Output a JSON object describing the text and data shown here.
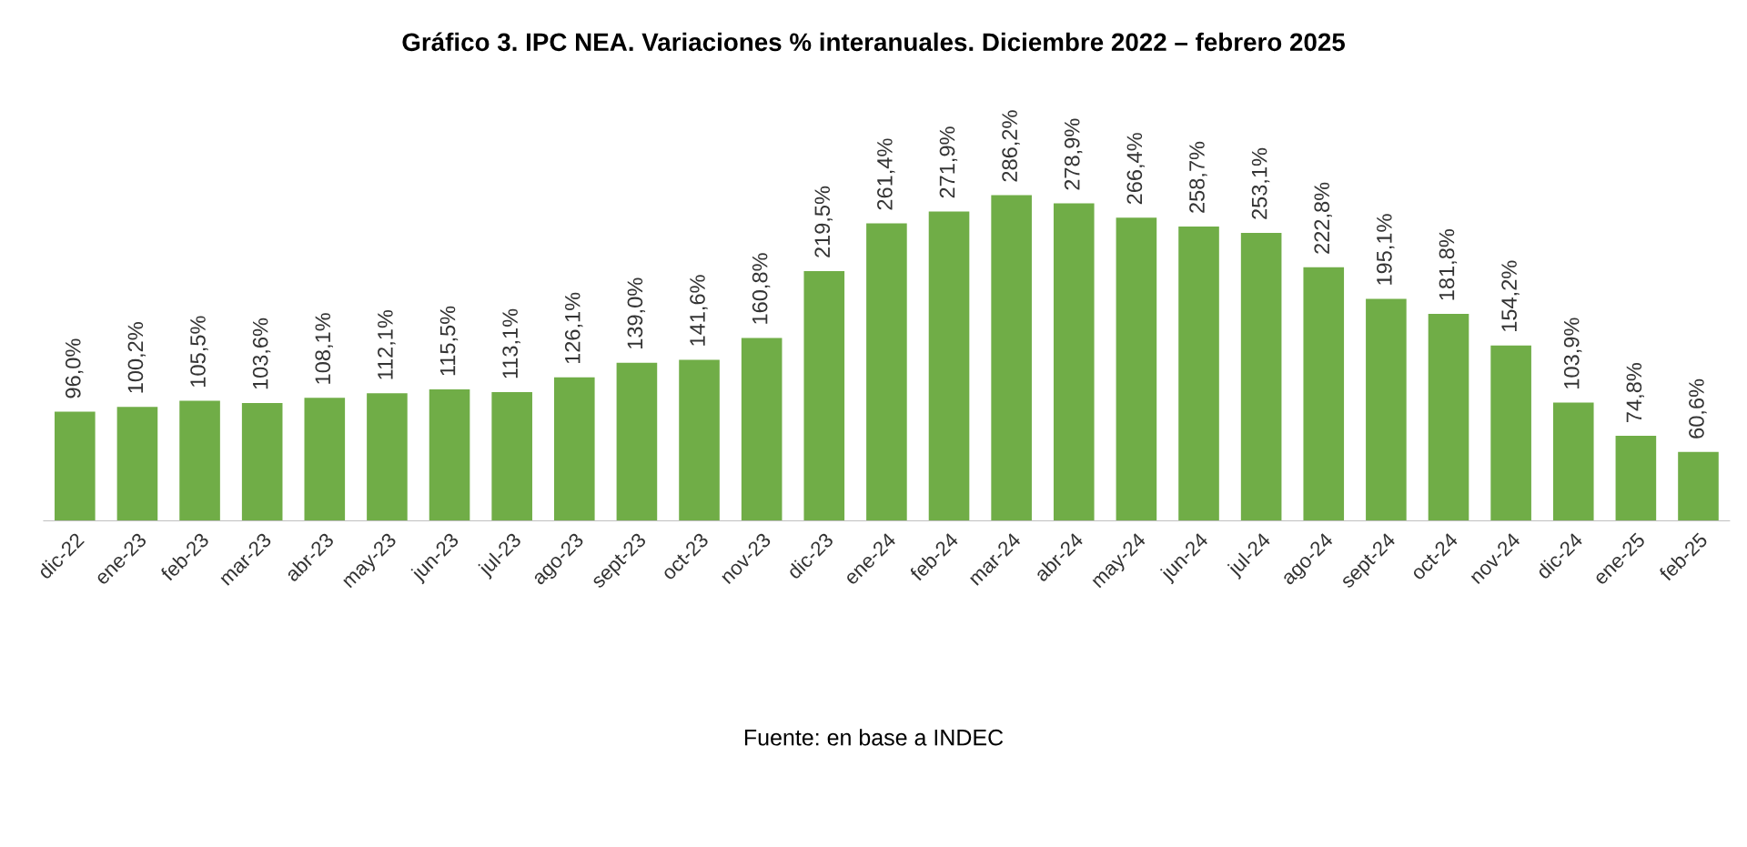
{
  "chart_data": {
    "type": "bar",
    "title": "Gráfico 3. IPC NEA. Variaciones % interanuales. Diciembre 2022 – febrero 2025",
    "categories": [
      "dic-22",
      "ene-23",
      "feb-23",
      "mar-23",
      "abr-23",
      "may-23",
      "jun-23",
      "jul-23",
      "ago-23",
      "sept-23",
      "oct-23",
      "nov-23",
      "dic-23",
      "ene-24",
      "feb-24",
      "mar-24",
      "abr-24",
      "may-24",
      "jun-24",
      "jul-24",
      "ago-24",
      "sept-24",
      "oct-24",
      "nov-24",
      "dic-24",
      "ene-25",
      "feb-25"
    ],
    "values": [
      96.0,
      100.2,
      105.5,
      103.6,
      108.1,
      112.1,
      115.5,
      113.1,
      126.1,
      139.0,
      141.6,
      160.8,
      219.5,
      261.4,
      271.9,
      286.2,
      278.9,
      266.4,
      258.7,
      253.1,
      222.8,
      195.1,
      181.8,
      154.2,
      103.9,
      74.8,
      60.6
    ],
    "value_labels": [
      "96,0%",
      "100,2%",
      "105,5%",
      "103,6%",
      "108,1%",
      "112,1%",
      "115,5%",
      "113,1%",
      "126,1%",
      "139,0%",
      "141,6%",
      "160,8%",
      "219,5%",
      "261,4%",
      "271,9%",
      "286,2%",
      "278,9%",
      "266,4%",
      "258,7%",
      "253,1%",
      "222,8%",
      "195,1%",
      "181,8%",
      "154,2%",
      "103,9%",
      "74,8%",
      "60,6%"
    ],
    "color": "#70ad47",
    "grid": false,
    "legend": false,
    "annotations": [
      "Fuente: en base a INDEC"
    ]
  }
}
